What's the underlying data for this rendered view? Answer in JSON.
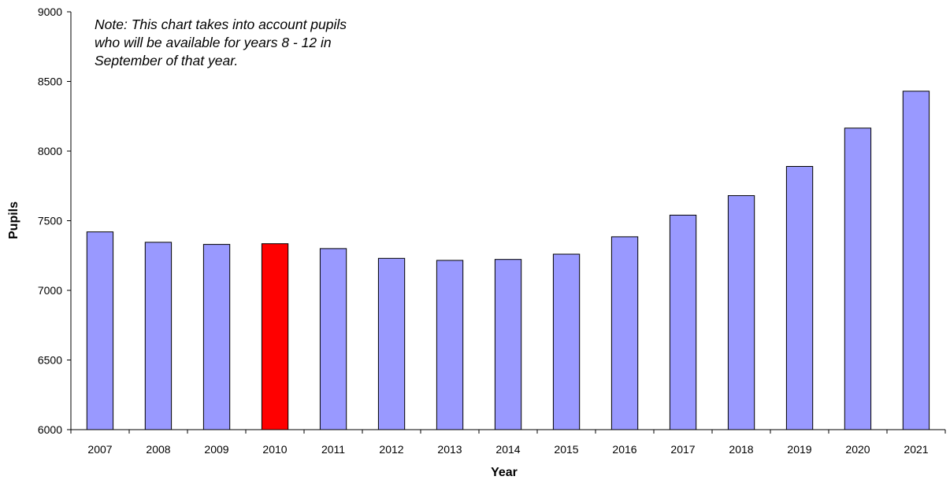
{
  "chart_data": {
    "type": "bar",
    "xlabel": "Year",
    "ylabel": "Pupils",
    "ylim": [
      6000,
      9000
    ],
    "yticks": [
      6000,
      6500,
      7000,
      7500,
      8000,
      8500,
      9000
    ],
    "grid": false,
    "categories": [
      "2007",
      "2008",
      "2009",
      "2010",
      "2011",
      "2012",
      "2013",
      "2014",
      "2015",
      "2016",
      "2017",
      "2018",
      "2019",
      "2020",
      "2021"
    ],
    "values": [
      7420,
      7345,
      7330,
      7335,
      7300,
      7230,
      7215,
      7222,
      7260,
      7385,
      7540,
      7680,
      7890,
      8165,
      8430
    ],
    "highlight_category": "2010",
    "colors": {
      "bar": "#9999ff",
      "highlight": "#ff0000",
      "outline": "#000000"
    },
    "annotation": [
      "Note: This chart takes into account pupils",
      "who will be available for years 8 - 12 in",
      "September of that year."
    ]
  }
}
